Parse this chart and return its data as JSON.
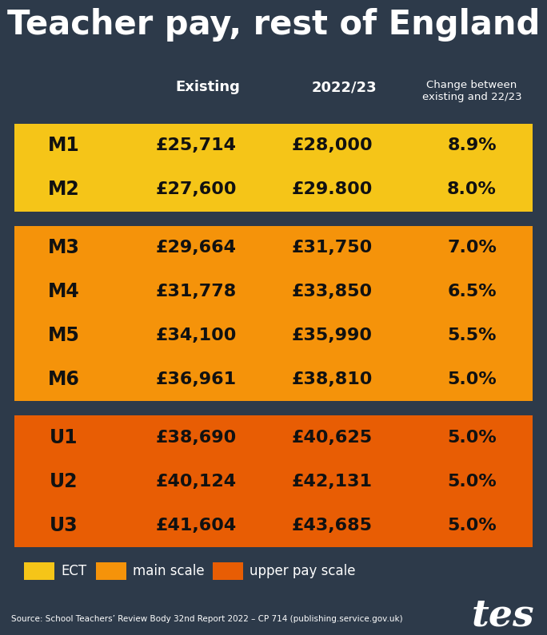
{
  "title": "Teacher pay, rest of England",
  "background_color": "#2d3a4a",
  "col_headers": [
    "Existing",
    "2022/23",
    "Change between\nexisting and 22/23"
  ],
  "sections": [
    {
      "color": "#f5c518",
      "rows": [
        {
          "label": "M1",
          "existing": "£25,714",
          "new": "£28,000",
          "change": "8.9%"
        },
        {
          "label": "M2",
          "existing": "£27,600",
          "new": "£29.800",
          "change": "8.0%"
        }
      ],
      "legend": "ECT"
    },
    {
      "color": "#f5930a",
      "rows": [
        {
          "label": "M3",
          "existing": "£29,664",
          "new": "£31,750",
          "change": "7.0%"
        },
        {
          "label": "M4",
          "existing": "£31,778",
          "new": "£33,850",
          "change": "6.5%"
        },
        {
          "label": "M5",
          "existing": "£34,100",
          "new": "£35,990",
          "change": "5.5%"
        },
        {
          "label": "M6",
          "existing": "£36,961",
          "new": "£38,810",
          "change": "5.0%"
        }
      ],
      "legend": "main scale"
    },
    {
      "color": "#e85d04",
      "rows": [
        {
          "label": "U1",
          "existing": "£38,690",
          "new": "£40,625",
          "change": "5.0%"
        },
        {
          "label": "U2",
          "existing": "£40,124",
          "new": "£42,131",
          "change": "5.0%"
        },
        {
          "label": "U3",
          "existing": "£41,604",
          "new": "£43,685",
          "change": "5.0%"
        }
      ],
      "legend": "upper pay scale"
    }
  ],
  "legend_items": [
    {
      "color": "#f5c518",
      "label": "ECT"
    },
    {
      "color": "#f5930a",
      "label": "main scale"
    },
    {
      "color": "#e85d04",
      "label": "upper pay scale"
    }
  ],
  "source_text": "Source: School Teachers’ Review Body 32nd Report 2022 – CP 714 (publishing.service.gov.uk)"
}
